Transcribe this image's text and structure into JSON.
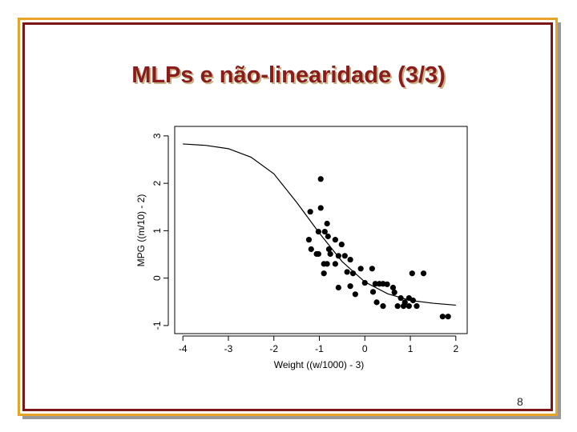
{
  "title": "MLPs e não-linearidade (3/3)",
  "page_number": "8",
  "chart_data": {
    "type": "scatter",
    "x_label": "Weight ((w/1000) - 3)",
    "y_label": "MPG ((m/10) - 2)",
    "xlim": [
      -4.18,
      2.25
    ],
    "ylim": [
      -1.17,
      3.2
    ],
    "xticks": [
      -4,
      -3,
      -2,
      -1,
      0,
      1,
      2
    ],
    "yticks": [
      -1,
      0,
      1,
      2,
      3
    ],
    "color": "#000000",
    "points": {
      "x": [
        -0.97,
        -1.2,
        -0.97,
        -0.83,
        -0.88,
        -1.02,
        -1.23,
        -0.81,
        -1.18,
        -1.02,
        -1.06,
        -0.79,
        -0.76,
        -0.9,
        -0.83,
        -0.9,
        -0.65,
        -0.51,
        -0.58,
        -0.65,
        -0.44,
        -0.32,
        -0.39,
        -0.26,
        -0.09,
        -0.58,
        -0.32,
        -0.21,
        0.16,
        0.23,
        0.32,
        0.4,
        0.49,
        0.18,
        0.62,
        0.65,
        0.4,
        0.26,
        0.79,
        0.88,
        0.97,
        1.04,
        1.29,
        0.85,
        0.97,
        1.14,
        1.06,
        1.71,
        1.83,
        0.72,
        0
      ],
      "y": [
        2.09,
        1.4,
        1.48,
        1.15,
        0.98,
        0.98,
        0.81,
        0.88,
        0.61,
        0.51,
        0.51,
        0.61,
        0.51,
        0.3,
        0.3,
        0.1,
        0.81,
        0.71,
        0.47,
        0.3,
        0.47,
        0.39,
        0.13,
        0.1,
        0.2,
        -0.2,
        -0.17,
        -0.34,
        0.2,
        -0.12,
        -0.12,
        -0.12,
        -0.13,
        -0.29,
        -0.2,
        -0.3,
        -0.59,
        -0.51,
        -0.42,
        -0.51,
        -0.42,
        0.1,
        0.1,
        -0.59,
        -0.59,
        -0.59,
        -0.47,
        -0.81,
        -0.81,
        -0.59,
        -0.1
      ]
    },
    "curve": {
      "x": [
        -4,
        -3.5,
        -3,
        -2.5,
        -2,
        -1.5,
        -1,
        -0.5,
        0,
        0.5,
        1,
        1.5,
        2
      ],
      "y": [
        2.83,
        2.8,
        2.73,
        2.55,
        2.2,
        1.6,
        0.95,
        0.35,
        -0.08,
        -0.33,
        -0.47,
        -0.53,
        -0.57
      ]
    }
  }
}
